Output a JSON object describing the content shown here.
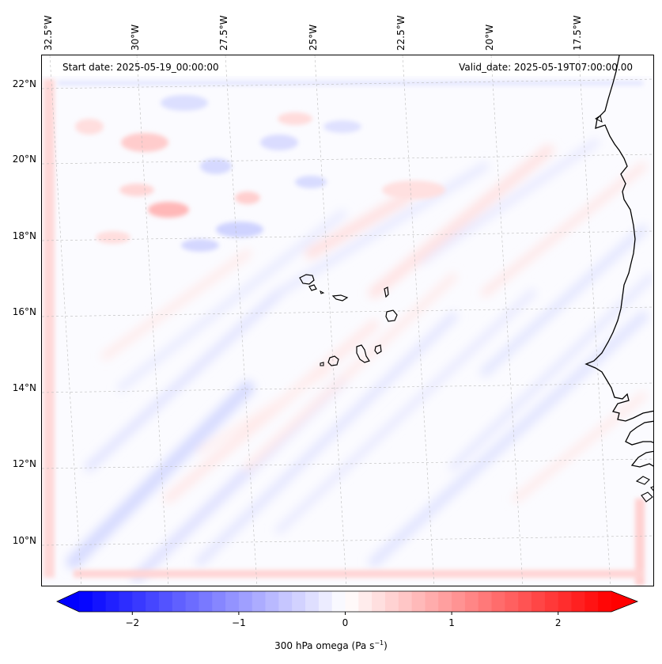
{
  "map": {
    "start_date": "Start date: 2025-05-19_00:00:00",
    "valid_date": "Valid_date: 2025-05-19T07:00:00.00",
    "lon_labels": [
      "32.5°W",
      "30°W",
      "27.5°W",
      "25°W",
      "22.5°W",
      "20°W",
      "17.5°W"
    ],
    "lat_labels": [
      "22°N",
      "20°N",
      "18°N",
      "16°N",
      "14°N",
      "12°N",
      "10°N"
    ],
    "gridlines": true,
    "field": "300 hPa omega",
    "colormap": "bwr",
    "colors": {
      "negative": "#0000ff",
      "zero": "#ffffff",
      "positive": "#ff0000",
      "coastline": "#000000"
    }
  },
  "colorbar": {
    "label": "300 hPa omega (Pa s",
    "label_sup": "−1",
    "label_end": ")",
    "range": [
      -2.5,
      2.5
    ],
    "ticks": [
      "−2",
      "−1",
      "0",
      "1",
      "2"
    ],
    "tick_values": [
      -2,
      -1,
      0,
      1,
      2
    ],
    "extend": "both"
  }
}
